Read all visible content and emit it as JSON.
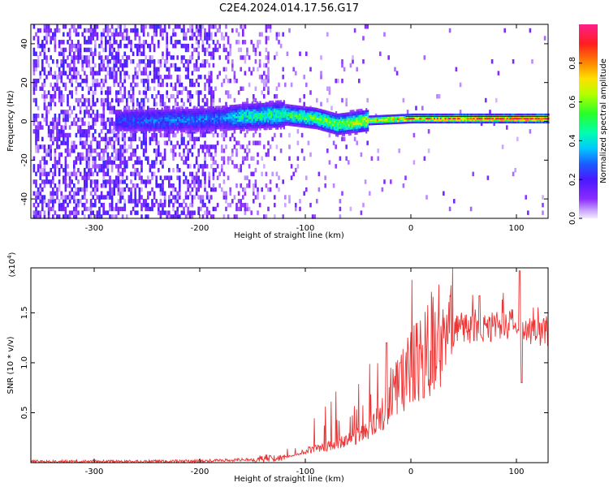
{
  "title": "C2E4.2024.014.17.56.G17",
  "chart_data": [
    {
      "type": "heatmap",
      "xlabel": "Height of straight line (km)",
      "ylabel": "Frequency (Hz)",
      "xlim": [
        -360,
        130
      ],
      "ylim": [
        -50,
        50
      ],
      "xticks": [
        -300,
        -200,
        -100,
        0,
        100
      ],
      "yticks": [
        -40,
        -20,
        0,
        20,
        40
      ],
      "colorbar": {
        "label": "Normalized spectral amplitude",
        "range": [
          0,
          1
        ],
        "ticks": [
          0.0,
          0.2,
          0.4,
          0.6,
          0.8
        ]
      },
      "ridge": {
        "description_points": [
          {
            "x": -275,
            "freq": 0,
            "amp": 0.25
          },
          {
            "x": -240,
            "freq": 0,
            "amp": 0.3
          },
          {
            "x": -180,
            "freq": 1,
            "amp": 0.3
          },
          {
            "x": -160,
            "freq": 2,
            "amp": 0.45
          },
          {
            "x": -120,
            "freq": 3,
            "amp": 0.5
          },
          {
            "x": -90,
            "freq": 1,
            "amp": 0.55
          },
          {
            "x": -70,
            "freq": -2,
            "amp": 0.6
          },
          {
            "x": -40,
            "freq": 0,
            "amp": 0.7
          },
          {
            "x": 0,
            "freq": 1,
            "amp": 0.8
          },
          {
            "x": 50,
            "freq": 1,
            "amp": 0.9
          },
          {
            "x": 130,
            "freq": 1,
            "amp": 0.95
          }
        ]
      }
    },
    {
      "type": "line",
      "xlabel": "Height of straight line (km)",
      "ylabel": "SNR (10 * v/v)",
      "y_multiplier": "(x10^4)",
      "xlim": [
        -360,
        130
      ],
      "ylim": [
        0,
        1.95
      ],
      "xticks": [
        -300,
        -200,
        -100,
        0,
        100
      ],
      "yticks": [
        0.5,
        1.0,
        1.5
      ],
      "ytick_labels": [
        "0.5",
        "1.0",
        "1.5"
      ],
      "series": [
        {
          "name": "SNR",
          "color": "#ee3333",
          "envelope": [
            {
              "x": -360,
              "y": 0.01
            },
            {
              "x": -250,
              "y": 0.01
            },
            {
              "x": -200,
              "y": 0.015
            },
            {
              "x": -150,
              "y": 0.03
            },
            {
              "x": -120,
              "y": 0.05
            },
            {
              "x": -100,
              "y": 0.1
            },
            {
              "x": -80,
              "y": 0.15
            },
            {
              "x": -60,
              "y": 0.22
            },
            {
              "x": -40,
              "y": 0.3
            },
            {
              "x": -25,
              "y": 0.5
            },
            {
              "x": -15,
              "y": 0.7
            },
            {
              "x": 0,
              "y": 0.9
            },
            {
              "x": 15,
              "y": 1.1
            },
            {
              "x": 30,
              "y": 1.23
            },
            {
              "x": 45,
              "y": 1.3
            },
            {
              "x": 60,
              "y": 1.33
            },
            {
              "x": 80,
              "y": 1.34
            },
            {
              "x": 95,
              "y": 1.35
            },
            {
              "x": 110,
              "y": 1.3
            },
            {
              "x": 130,
              "y": 1.3
            }
          ],
          "peaks": [
            {
              "x": -23,
              "y": 1.2
            },
            {
              "x": -10,
              "y": 1.0
            },
            {
              "x": 12,
              "y": 0.65
            },
            {
              "x": 65,
              "y": 1.67
            },
            {
              "x": 103,
              "y": 1.92
            },
            {
              "x": 105,
              "y": 0.8
            }
          ]
        }
      ]
    }
  ]
}
